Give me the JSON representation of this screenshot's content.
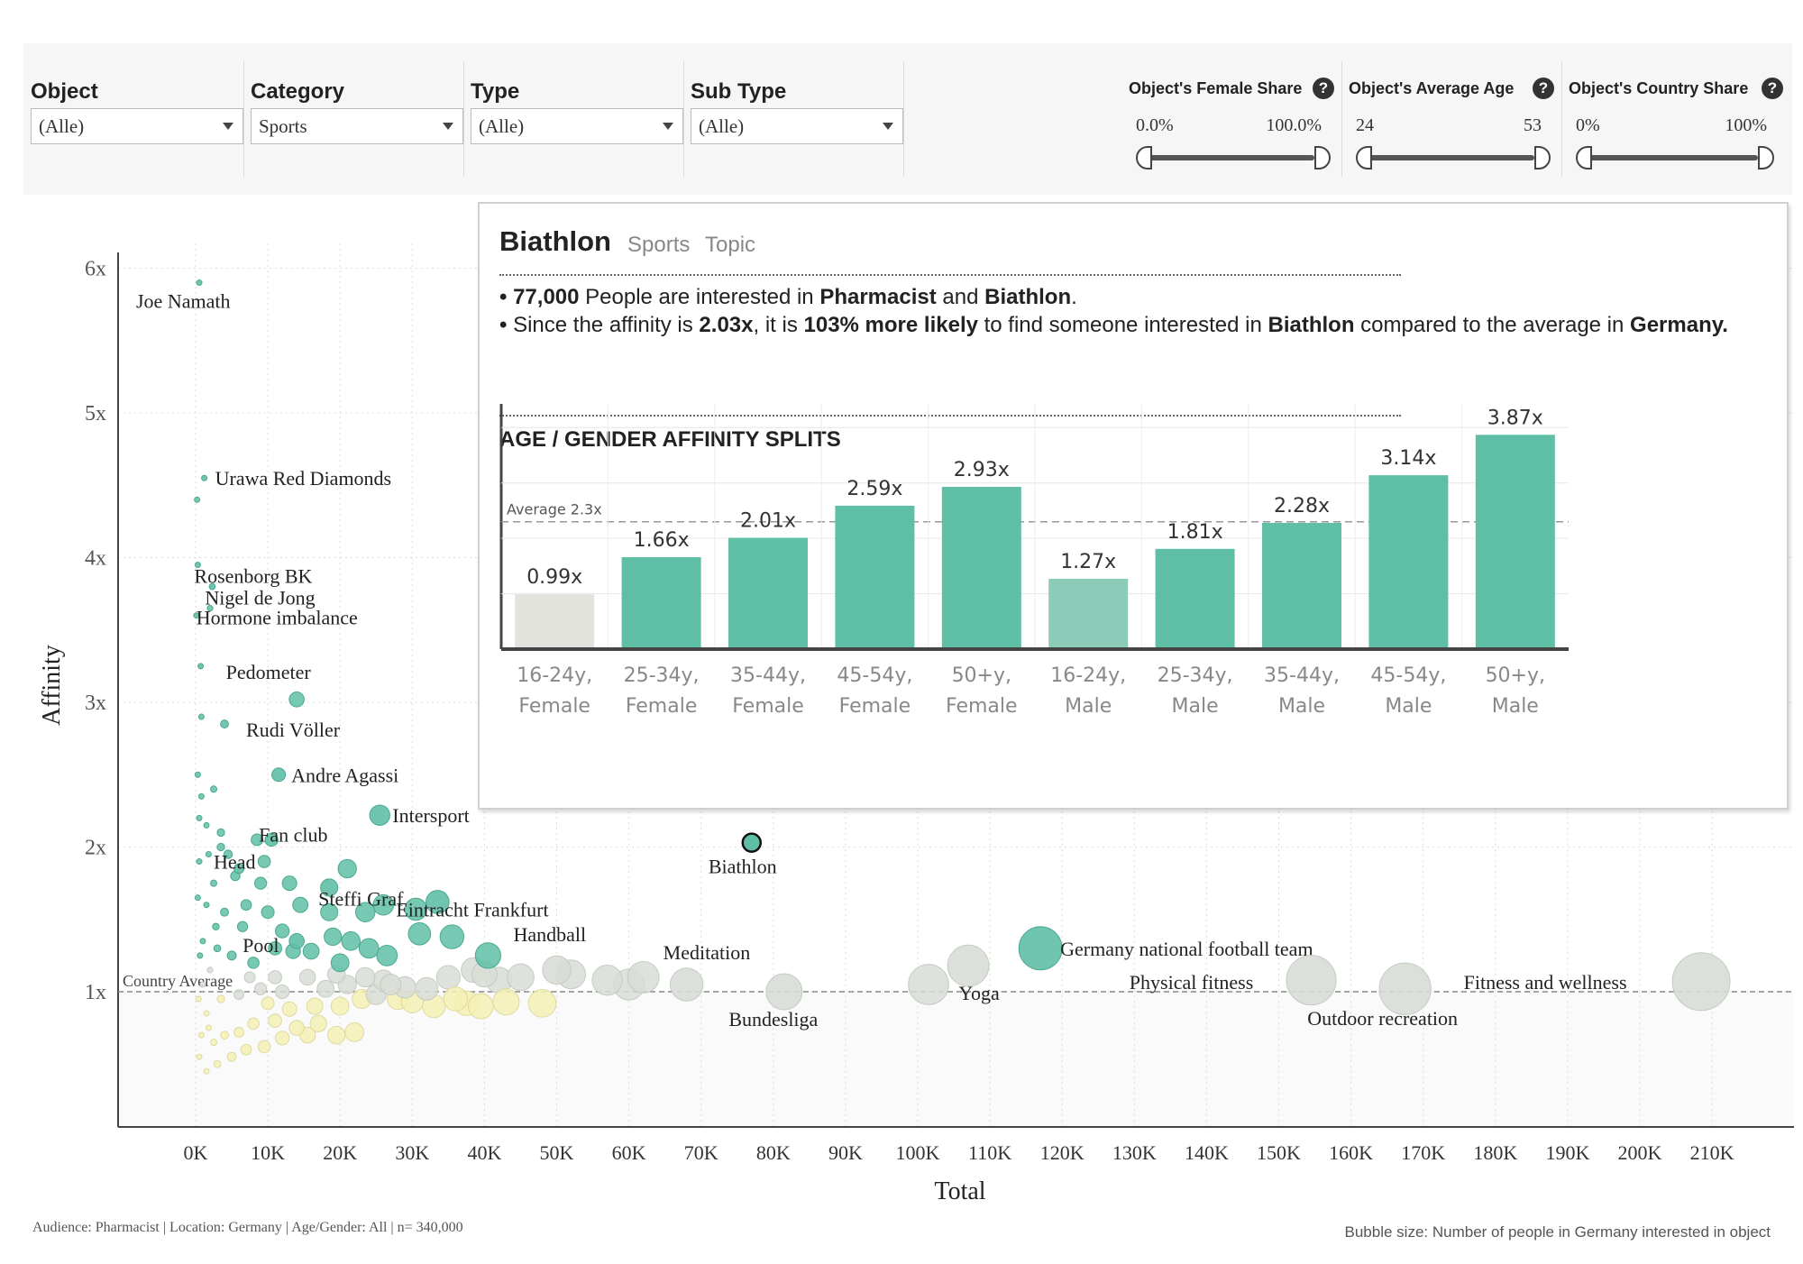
{
  "filters": [
    {
      "label": "Object",
      "value": "(Alle)"
    },
    {
      "label": "Category",
      "value": "Sports"
    },
    {
      "label": "Type",
      "value": "(Alle)"
    },
    {
      "label": "Sub Type",
      "value": "(Alle)"
    }
  ],
  "sliders": [
    {
      "label": "Object's Female Share",
      "min": "0.0%",
      "max": "100.0%",
      "range": [
        0.0,
        100.0
      ]
    },
    {
      "label": "Object's Average Age",
      "min": "24",
      "max": "53",
      "range": [
        24,
        53
      ]
    },
    {
      "label": "Object's Country Share",
      "min": "0%",
      "max": "100%",
      "range": [
        0,
        100
      ]
    }
  ],
  "help_icon": "question-mark-icon",
  "footnote_left": "Audience: Pharmacist | Location: Germany | Age/Gender: All | n= 340,000",
  "footnote_right": "Bubble size: Number of people in Germany interested in object",
  "colors": {
    "teal": "#5fbfa6",
    "teal_light": "#8ccbb8",
    "grey_bubble": "#d8ddd6",
    "yellow_bubble": "#f3f0b4",
    "below_band": "#fafafa",
    "grid": "#dcdcdc"
  },
  "chart_data": [
    {
      "type": "scatter",
      "xlabel": "Total",
      "ylabel": "Affinity",
      "xlim": [
        -2000,
        220000
      ],
      "ylim": [
        0.1,
        6.2
      ],
      "xticks": [
        0,
        10000,
        20000,
        30000,
        40000,
        50000,
        60000,
        70000,
        80000,
        90000,
        100000,
        110000,
        120000,
        130000,
        140000,
        150000,
        160000,
        170000,
        180000,
        190000,
        200000,
        210000
      ],
      "xtick_labels": [
        "0K",
        "10K",
        "20K",
        "30K",
        "40K",
        "50K",
        "60K",
        "70K",
        "80K",
        "90K",
        "100K",
        "110K",
        "120K",
        "130K",
        "140K",
        "150K",
        "160K",
        "170K",
        "180K",
        "190K",
        "200K",
        "210K"
      ],
      "yticks": [
        1,
        2,
        3,
        4,
        5,
        6
      ],
      "ytick_labels": [
        "1x",
        "2x",
        "3x",
        "4x",
        "5x",
        "6x"
      ],
      "reference_line": {
        "label": "Country Average",
        "y": 1
      },
      "grid": true,
      "highlighted": "Biathlon",
      "labeled_points": [
        {
          "name": "Joe Namath",
          "x": 500,
          "y": 5.9
        },
        {
          "name": "Urawa Red Diamonds",
          "x": 1200,
          "y": 4.55
        },
        {
          "name": "Rosenborg BK",
          "x": 300,
          "y": 3.95
        },
        {
          "name": "Nigel de Jong",
          "x": 2300,
          "y": 3.8
        },
        {
          "name": "Hormone imbalance",
          "x": 100,
          "y": 3.6
        },
        {
          "name": "Pedometer",
          "x": 700,
          "y": 3.25
        },
        {
          "name": "Rudi Völler",
          "x": 4000,
          "y": 2.85
        },
        {
          "name": "Andre Agassi",
          "x": 11500,
          "y": 2.5
        },
        {
          "name": "Intersport",
          "x": 25500,
          "y": 2.22
        },
        {
          "name": "Fan club",
          "x": 10500,
          "y": 2.05
        },
        {
          "name": "Head",
          "x": 6000,
          "y": 1.85
        },
        {
          "name": "Steffi Graf",
          "x": 18500,
          "y": 1.72
        },
        {
          "name": "Eintracht Frankfurt",
          "x": 33500,
          "y": 1.62
        },
        {
          "name": "Pool",
          "x": 14000,
          "y": 1.35
        },
        {
          "name": "Handball",
          "x": 50000,
          "y": 1.15
        },
        {
          "name": "Meditation",
          "x": 68000,
          "y": 1.05
        },
        {
          "name": "Biathlon",
          "x": 77000,
          "y": 2.03
        },
        {
          "name": "Bundesliga",
          "x": 81500,
          "y": 1.0
        },
        {
          "name": "Yoga",
          "x": 107000,
          "y": 1.18
        },
        {
          "name": "Germany national football team",
          "x": 117000,
          "y": 1.3
        },
        {
          "name": "Physical fitness",
          "x": 154500,
          "y": 1.08
        },
        {
          "name": "Outdoor recreation",
          "x": 167500,
          "y": 1.02
        },
        {
          "name": "Fitness and wellness",
          "x": 208500,
          "y": 1.07
        }
      ],
      "other_points": [
        {
          "x": 60000,
          "y": 1.05
        },
        {
          "x": 57000,
          "y": 1.08
        },
        {
          "x": 101500,
          "y": 1.05
        },
        {
          "x": 62000,
          "y": 1.1
        },
        {
          "x": 52000,
          "y": 1.12
        },
        {
          "x": 42000,
          "y": 1.08
        },
        {
          "x": 48000,
          "y": 0.92
        },
        {
          "x": 38500,
          "y": 1.15
        },
        {
          "x": 37500,
          "y": 0.92
        },
        {
          "x": 39500,
          "y": 0.9
        },
        {
          "x": 43000,
          "y": 0.93
        },
        {
          "x": 35000,
          "y": 1.1
        },
        {
          "x": 28000,
          "y": 0.95
        },
        {
          "x": 30000,
          "y": 0.93
        },
        {
          "x": 33000,
          "y": 0.9
        },
        {
          "x": 36000,
          "y": 0.95
        },
        {
          "x": 40000,
          "y": 1.12
        },
        {
          "x": 45000,
          "y": 1.1
        },
        {
          "x": 22000,
          "y": 0.72
        },
        {
          "x": 19500,
          "y": 0.7
        },
        {
          "x": 15500,
          "y": 0.7
        },
        {
          "x": 12000,
          "y": 0.68
        },
        {
          "x": 9500,
          "y": 0.62
        },
        {
          "x": 7000,
          "y": 0.6
        },
        {
          "x": 5000,
          "y": 0.55
        },
        {
          "x": 3000,
          "y": 0.5
        },
        {
          "x": 1500,
          "y": 0.45
        },
        {
          "x": 17000,
          "y": 0.78
        },
        {
          "x": 14000,
          "y": 0.75
        },
        {
          "x": 11000,
          "y": 0.8
        },
        {
          "x": 8000,
          "y": 0.78
        },
        {
          "x": 6000,
          "y": 0.72
        },
        {
          "x": 4000,
          "y": 0.7
        },
        {
          "x": 2500,
          "y": 0.65
        },
        {
          "x": 13000,
          "y": 0.88
        },
        {
          "x": 10000,
          "y": 0.92
        },
        {
          "x": 16500,
          "y": 0.9
        },
        {
          "x": 20000,
          "y": 0.9
        },
        {
          "x": 23000,
          "y": 0.95
        },
        {
          "x": 25000,
          "y": 0.98
        },
        {
          "x": 18000,
          "y": 1.02
        },
        {
          "x": 21000,
          "y": 1.05
        },
        {
          "x": 26000,
          "y": 1.08
        },
        {
          "x": 29000,
          "y": 1.03
        },
        {
          "x": 32000,
          "y": 1.02
        },
        {
          "x": 12000,
          "y": 1.0
        },
        {
          "x": 9000,
          "y": 1.02
        },
        {
          "x": 6000,
          "y": 0.98
        },
        {
          "x": 3500,
          "y": 0.95
        },
        {
          "x": 1500,
          "y": 0.85
        },
        {
          "x": 800,
          "y": 0.7
        },
        {
          "x": 500,
          "y": 0.55
        },
        {
          "x": 1000,
          "y": 1.05
        },
        {
          "x": 2000,
          "y": 1.15
        },
        {
          "x": 7500,
          "y": 1.1
        },
        {
          "x": 11000,
          "y": 1.1
        },
        {
          "x": 15500,
          "y": 1.1
        },
        {
          "x": 19500,
          "y": 1.12
        },
        {
          "x": 23500,
          "y": 1.1
        },
        {
          "x": 27000,
          "y": 1.05
        },
        {
          "x": 26500,
          "y": 1.25
        },
        {
          "x": 24000,
          "y": 1.3
        },
        {
          "x": 21500,
          "y": 1.35
        },
        {
          "x": 19000,
          "y": 1.38
        },
        {
          "x": 16000,
          "y": 1.28
        },
        {
          "x": 13500,
          "y": 1.28
        },
        {
          "x": 11000,
          "y": 1.3
        },
        {
          "x": 8000,
          "y": 1.2
        },
        {
          "x": 5000,
          "y": 1.25
        },
        {
          "x": 3000,
          "y": 1.3
        },
        {
          "x": 1000,
          "y": 1.35
        },
        {
          "x": 31000,
          "y": 1.4
        },
        {
          "x": 35500,
          "y": 1.38
        },
        {
          "x": 40500,
          "y": 1.25
        },
        {
          "x": 30500,
          "y": 1.57
        },
        {
          "x": 26000,
          "y": 1.6
        },
        {
          "x": 18500,
          "y": 1.55
        },
        {
          "x": 14500,
          "y": 1.6
        },
        {
          "x": 10000,
          "y": 1.55
        },
        {
          "x": 7000,
          "y": 1.6
        },
        {
          "x": 4000,
          "y": 1.55
        },
        {
          "x": 1500,
          "y": 1.6
        },
        {
          "x": 9000,
          "y": 1.75
        },
        {
          "x": 5500,
          "y": 1.8
        },
        {
          "x": 2500,
          "y": 1.75
        },
        {
          "x": 500,
          "y": 1.9
        },
        {
          "x": 3500,
          "y": 2.0
        },
        {
          "x": 8500,
          "y": 2.05
        },
        {
          "x": 500,
          "y": 2.2
        },
        {
          "x": 2500,
          "y": 2.4
        },
        {
          "x": 300,
          "y": 2.5
        },
        {
          "x": 1500,
          "y": 2.15
        },
        {
          "x": 4500,
          "y": 1.95
        },
        {
          "x": 12000,
          "y": 1.42
        },
        {
          "x": 13000,
          "y": 1.75
        },
        {
          "x": 20000,
          "y": 1.2
        },
        {
          "x": 200,
          "y": 4.4
        },
        {
          "x": 2000,
          "y": 3.65
        },
        {
          "x": 800,
          "y": 2.9
        },
        {
          "x": 3500,
          "y": 2.1
        },
        {
          "x": 14000,
          "y": 3.02
        },
        {
          "x": 800,
          "y": 2.35
        },
        {
          "x": 1800,
          "y": 1.95
        },
        {
          "x": 300,
          "y": 1.65
        },
        {
          "x": 2800,
          "y": 1.45
        },
        {
          "x": 6500,
          "y": 1.45
        },
        {
          "x": 9500,
          "y": 1.9
        },
        {
          "x": 21000,
          "y": 1.85
        },
        {
          "x": 23500,
          "y": 1.55
        },
        {
          "x": 600,
          "y": 1.25
        },
        {
          "x": 1800,
          "y": 0.75
        },
        {
          "x": 400,
          "y": 0.95
        }
      ]
    },
    {
      "type": "bar",
      "title": "AGE / GENDER AFFINITY SPLITS",
      "categories": [
        "16-24y, Female",
        "25-34y, Female",
        "35-44y, Female",
        "45-54y, Female",
        "50+y, Female",
        "16-24y, Male",
        "25-34y, Male",
        "35-44y, Male",
        "45-54y, Male",
        "50+y, Male"
      ],
      "category_lines": [
        [
          "16-24y,",
          "Female"
        ],
        [
          "25-34y,",
          "Female"
        ],
        [
          "35-44y,",
          "Female"
        ],
        [
          "45-54y,",
          "Female"
        ],
        [
          "50+y,",
          "Female"
        ],
        [
          "16-24y,",
          "Male"
        ],
        [
          "25-34y,",
          "Male"
        ],
        [
          "35-44y,",
          "Male"
        ],
        [
          "45-54y,",
          "Male"
        ],
        [
          "50+y,",
          "Male"
        ]
      ],
      "values": [
        0.99,
        1.66,
        2.01,
        2.59,
        2.93,
        1.27,
        1.81,
        2.28,
        3.14,
        3.87
      ],
      "value_labels": [
        "0.99x",
        "1.66x",
        "2.01x",
        "2.59x",
        "2.93x",
        "1.27x",
        "1.81x",
        "2.28x",
        "3.14x",
        "3.87x"
      ],
      "reference_line": {
        "label": "Average 2.3x",
        "value": 2.3
      },
      "ylim": [
        0,
        4.2
      ]
    }
  ],
  "tooltip": {
    "title": "Biathlon",
    "category": "Sports",
    "subtype": "Topic",
    "line1": {
      "bullet": "•",
      "count": "77,000",
      "text1": "People are interested in",
      "audience": "Pharmacist",
      "and": "and",
      "object": "Biathlon",
      "end": "."
    },
    "line2": {
      "bullet": "•",
      "text1": "Since the affinity is",
      "affinity": "2.03x",
      "text2": ", it is",
      "likely": "103% more likely",
      "text3": "to find someone interested in",
      "object": "Biathlon",
      "text4": "compared to the average in",
      "country": "Germany."
    }
  }
}
